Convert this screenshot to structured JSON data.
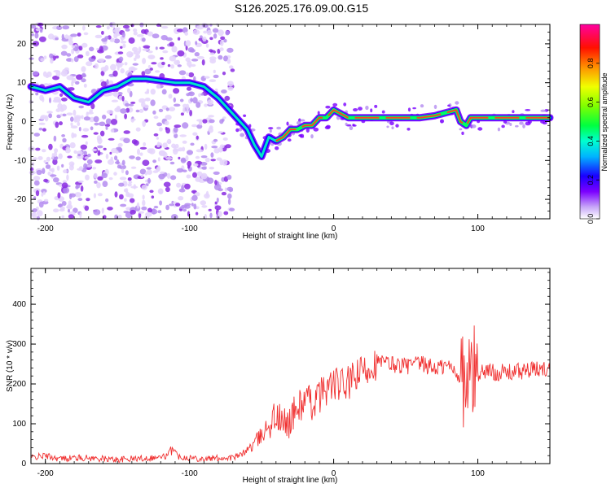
{
  "title": "S126.2025.176.09.00.G15",
  "chart_data": [
    {
      "type": "heatmap",
      "xlabel": "Height of straight line (km)",
      "ylabel": "Frequency (Hz)",
      "xlim": [
        -210,
        150
      ],
      "ylim": [
        -25,
        25
      ],
      "xticks": [
        -200,
        -100,
        0,
        100
      ],
      "yticks": [
        -20,
        -10,
        0,
        10,
        20
      ],
      "colorbar": {
        "label": "Normalized spectral amplitude",
        "range": [
          0,
          1
        ],
        "ticks": [
          "0.0",
          "0.2",
          "0.4",
          "0.6",
          "0.8"
        ]
      },
      "ridge": {
        "x": [
          -210,
          -200,
          -190,
          -180,
          -170,
          -160,
          -150,
          -140,
          -130,
          -120,
          -110,
          -100,
          -90,
          -80,
          -70,
          -60,
          -55,
          -50,
          -45,
          -40,
          -35,
          -30,
          -25,
          -20,
          -15,
          -10,
          -5,
          0,
          5,
          10,
          20,
          30,
          40,
          50,
          60,
          70,
          80,
          85,
          88,
          92,
          95,
          100,
          110,
          120,
          130,
          140,
          150
        ],
        "y": [
          9,
          8,
          9,
          6,
          5,
          8,
          9,
          11,
          11,
          10.5,
          10,
          10,
          9,
          6,
          2,
          -2,
          -6,
          -9,
          -4,
          -5,
          -4,
          -2,
          -2,
          -1,
          -1,
          1,
          1,
          3,
          2,
          1,
          1,
          1,
          1,
          1,
          1,
          1.5,
          2.5,
          3,
          0,
          -1,
          1,
          1,
          1,
          1,
          1,
          1,
          1
        ]
      },
      "strong_segment_x": [
        -40,
        150
      ]
    },
    {
      "type": "line",
      "xlabel": "Height of straight line (km)",
      "ylabel": "SNR (10 * v/v)",
      "xlim": [
        -210,
        150
      ],
      "ylim": [
        0,
        490
      ],
      "xticks": [
        -200,
        -100,
        0,
        100
      ],
      "yticks": [
        0,
        100,
        200,
        300,
        400
      ],
      "color": "#f03030",
      "series": [
        {
          "x": [
            -210,
            -200,
            -190,
            -180,
            -170,
            -160,
            -150,
            -140,
            -130,
            -120,
            -115,
            -112,
            -108,
            -100,
            -90,
            -80,
            -70,
            -65,
            -60,
            -55,
            -50,
            -45,
            -40,
            -35,
            -30,
            -25,
            -20,
            -15,
            -10,
            -5,
            0,
            5,
            10,
            15,
            20,
            25,
            30,
            40,
            50,
            60,
            70,
            80,
            85,
            90,
            93,
            95,
            96,
            97,
            100,
            105,
            110,
            120,
            130,
            140,
            150
          ],
          "y": [
            15,
            20,
            12,
            15,
            14,
            12,
            10,
            12,
            14,
            16,
            20,
            45,
            18,
            15,
            12,
            14,
            15,
            20,
            35,
            50,
            70,
            100,
            120,
            95,
            110,
            140,
            160,
            150,
            170,
            190,
            200,
            195,
            200,
            215,
            230,
            245,
            255,
            250,
            245,
            250,
            240,
            245,
            230,
            210,
            180,
            250,
            180,
            230,
            225,
            235,
            230,
            228,
            232,
            235,
            240
          ]
        }
      ]
    }
  ]
}
